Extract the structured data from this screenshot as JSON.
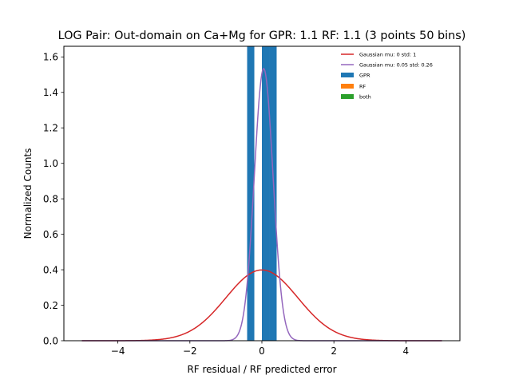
{
  "chart_data": {
    "type": "histogram",
    "title": "LOG Pair: Out-domain on Ca+Mg for GPR: 1.1 RF: 1.1 (3 points 50 bins)",
    "xlabel": "RF residual / RF predicted error",
    "ylabel": "Normalized Counts",
    "xlim": [
      -5.5,
      5.5
    ],
    "ylim": [
      0,
      1.66
    ],
    "xticks": [
      -4,
      -2,
      0,
      2,
      4
    ],
    "xtick_labels": [
      "−4",
      "−2",
      "0",
      "2",
      "4"
    ],
    "yticks": [
      0.0,
      0.2,
      0.4,
      0.6,
      0.8,
      1.0,
      1.2,
      1.4,
      1.6
    ],
    "ytick_labels": [
      "0.0",
      "0.2",
      "0.4",
      "0.6",
      "0.8",
      "1.0",
      "1.2",
      "1.4",
      "1.6"
    ],
    "grid": false,
    "legend_position": "top-right",
    "bars": [
      {
        "series": "GPR",
        "x0": -0.41,
        "x1": -0.21,
        "height": 1.66
      },
      {
        "series": "GPR",
        "x0": 0.0,
        "x1": 0.2,
        "height": 1.66
      },
      {
        "series": "GPR",
        "x0": 0.2,
        "x1": 0.41,
        "height": 1.66
      }
    ],
    "curves": [
      {
        "name": "Gaussian mu: 0 std: 1",
        "mu": 0,
        "sigma": 1,
        "x_range": [
          -5,
          5
        ],
        "color": "#d62728"
      },
      {
        "name": "Gaussian mu: 0.05 std: 0.26",
        "mu": 0.05,
        "sigma": 0.26,
        "x_range": [
          -5,
          5
        ],
        "color": "#9467bd"
      }
    ],
    "legend": [
      {
        "label": "Gaussian mu: 0 std: 1",
        "kind": "line",
        "color": "#d62728"
      },
      {
        "label": "Gaussian mu: 0.05 std: 0.26",
        "kind": "line",
        "color": "#9467bd"
      },
      {
        "label": "GPR",
        "kind": "patch",
        "color": "#1f77b4"
      },
      {
        "label": "RF",
        "kind": "patch",
        "color": "#ff7f0e"
      },
      {
        "label": "both",
        "kind": "patch",
        "color": "#2ca02c"
      }
    ]
  }
}
